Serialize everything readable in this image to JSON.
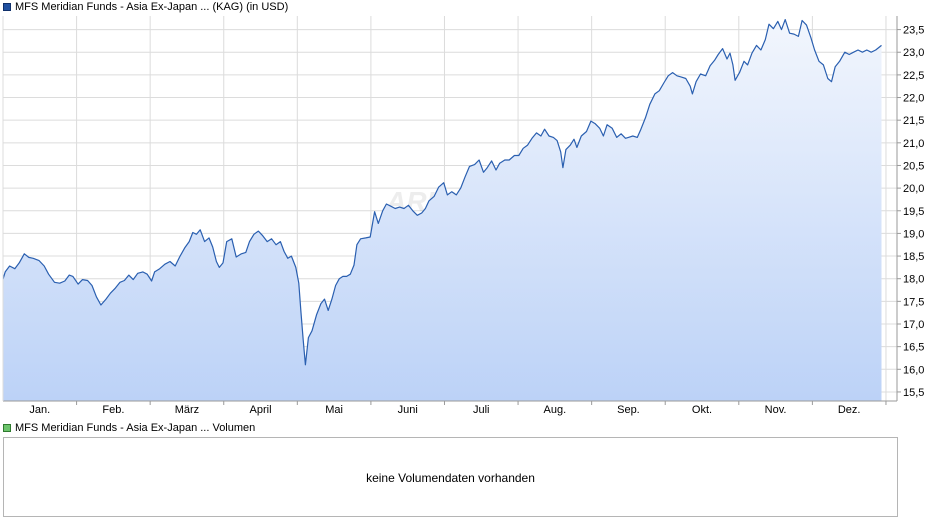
{
  "price_chart": {
    "legend_label": "MFS Meridian Funds - Asia Ex-Japan ... (KAG) (in USD)",
    "watermark": "ARIVA.DE"
  },
  "volume_chart": {
    "legend_label": "MFS Meridian Funds - Asia Ex-Japan ... Volumen",
    "empty_message": "keine Volumendaten vorhanden"
  },
  "colors": {
    "line": "#2a5fb0",
    "fill_top": "#f2f6fd",
    "fill_bottom": "#bcd2f7",
    "grid": "#dcdcdc",
    "axis": "#9a9a9a",
    "price_swatch": "#2050a0",
    "volume_swatch": "#6cc46c"
  },
  "chart_data": {
    "type": "area",
    "title": "MFS Meridian Funds - Asia Ex-Japan ... (KAG) (in USD)",
    "currency": "USD",
    "xlabel": "",
    "ylabel": "",
    "x_ticks": [
      "Jan.",
      "Feb.",
      "März",
      "April",
      "Mai",
      "Juni",
      "Juli",
      "Aug.",
      "Sep.",
      "Okt.",
      "Nov.",
      "Dez."
    ],
    "y_ticks": [
      "15,5",
      "16,0",
      "16,5",
      "17,0",
      "17,5",
      "18,0",
      "18,5",
      "19,0",
      "19,5",
      "20,0",
      "20,5",
      "21,0",
      "21,5",
      "22,0",
      "22,5",
      "23,0",
      "23,5"
    ],
    "y_tick_values": [
      15.5,
      16.0,
      16.5,
      17.0,
      17.5,
      18.0,
      18.5,
      19.0,
      19.5,
      20.0,
      20.5,
      21.0,
      21.5,
      22.0,
      22.5,
      23.0,
      23.5
    ],
    "ylim": [
      15.3,
      23.8
    ],
    "xlim": [
      0,
      12.15
    ],
    "grid": true,
    "x_unit": "months from start of year",
    "points": [
      [
        0.0,
        17.99
      ],
      [
        0.03,
        18.15
      ],
      [
        0.09,
        18.28
      ],
      [
        0.16,
        18.22
      ],
      [
        0.22,
        18.35
      ],
      [
        0.29,
        18.55
      ],
      [
        0.35,
        18.47
      ],
      [
        0.41,
        18.45
      ],
      [
        0.49,
        18.4
      ],
      [
        0.56,
        18.28
      ],
      [
        0.62,
        18.1
      ],
      [
        0.7,
        17.92
      ],
      [
        0.77,
        17.9
      ],
      [
        0.84,
        17.95
      ],
      [
        0.9,
        18.08
      ],
      [
        0.95,
        18.05
      ],
      [
        1.02,
        17.88
      ],
      [
        1.08,
        17.98
      ],
      [
        1.15,
        17.96
      ],
      [
        1.21,
        17.85
      ],
      [
        1.27,
        17.6
      ],
      [
        1.33,
        17.42
      ],
      [
        1.4,
        17.55
      ],
      [
        1.46,
        17.68
      ],
      [
        1.52,
        17.78
      ],
      [
        1.59,
        17.92
      ],
      [
        1.65,
        17.96
      ],
      [
        1.71,
        18.08
      ],
      [
        1.77,
        17.98
      ],
      [
        1.83,
        18.12
      ],
      [
        1.9,
        18.15
      ],
      [
        1.96,
        18.1
      ],
      [
        2.02,
        17.95
      ],
      [
        2.06,
        18.15
      ],
      [
        2.13,
        18.22
      ],
      [
        2.2,
        18.32
      ],
      [
        2.27,
        18.38
      ],
      [
        2.34,
        18.28
      ],
      [
        2.4,
        18.48
      ],
      [
        2.47,
        18.68
      ],
      [
        2.53,
        18.82
      ],
      [
        2.58,
        19.02
      ],
      [
        2.63,
        18.98
      ],
      [
        2.68,
        19.08
      ],
      [
        2.74,
        18.82
      ],
      [
        2.8,
        18.9
      ],
      [
        2.85,
        18.7
      ],
      [
        2.9,
        18.38
      ],
      [
        2.94,
        18.25
      ],
      [
        2.99,
        18.35
      ],
      [
        3.04,
        18.82
      ],
      [
        3.11,
        18.88
      ],
      [
        3.17,
        18.48
      ],
      [
        3.24,
        18.55
      ],
      [
        3.3,
        18.58
      ],
      [
        3.35,
        18.82
      ],
      [
        3.41,
        18.98
      ],
      [
        3.47,
        19.05
      ],
      [
        3.53,
        18.95
      ],
      [
        3.59,
        18.82
      ],
      [
        3.65,
        18.88
      ],
      [
        3.71,
        18.75
      ],
      [
        3.77,
        18.82
      ],
      [
        3.82,
        18.6
      ],
      [
        3.87,
        18.45
      ],
      [
        3.92,
        18.5
      ],
      [
        3.98,
        18.25
      ],
      [
        4.02,
        17.9
      ],
      [
        4.05,
        17.25
      ],
      [
        4.08,
        16.65
      ],
      [
        4.11,
        16.1
      ],
      [
        4.15,
        16.7
      ],
      [
        4.2,
        16.85
      ],
      [
        4.26,
        17.2
      ],
      [
        4.32,
        17.45
      ],
      [
        4.37,
        17.55
      ],
      [
        4.42,
        17.3
      ],
      [
        4.47,
        17.55
      ],
      [
        4.52,
        17.85
      ],
      [
        4.57,
        18.0
      ],
      [
        4.62,
        18.05
      ],
      [
        4.67,
        18.05
      ],
      [
        4.72,
        18.1
      ],
      [
        4.77,
        18.3
      ],
      [
        4.81,
        18.75
      ],
      [
        4.86,
        18.88
      ],
      [
        4.93,
        18.9
      ],
      [
        4.99,
        18.92
      ],
      [
        5.05,
        19.48
      ],
      [
        5.1,
        19.22
      ],
      [
        5.16,
        19.5
      ],
      [
        5.21,
        19.65
      ],
      [
        5.27,
        19.6
      ],
      [
        5.33,
        19.55
      ],
      [
        5.39,
        19.58
      ],
      [
        5.45,
        19.55
      ],
      [
        5.51,
        19.62
      ],
      [
        5.57,
        19.5
      ],
      [
        5.63,
        19.4
      ],
      [
        5.69,
        19.45
      ],
      [
        5.74,
        19.55
      ],
      [
        5.79,
        19.72
      ],
      [
        5.86,
        19.82
      ],
      [
        5.92,
        20.02
      ],
      [
        5.99,
        20.12
      ],
      [
        6.04,
        19.85
      ],
      [
        6.1,
        19.92
      ],
      [
        6.16,
        19.85
      ],
      [
        6.22,
        20.0
      ],
      [
        6.28,
        20.25
      ],
      [
        6.34,
        20.48
      ],
      [
        6.41,
        20.52
      ],
      [
        6.47,
        20.62
      ],
      [
        6.53,
        20.35
      ],
      [
        6.58,
        20.45
      ],
      [
        6.64,
        20.6
      ],
      [
        6.7,
        20.4
      ],
      [
        6.75,
        20.55
      ],
      [
        6.82,
        20.62
      ],
      [
        6.88,
        20.62
      ],
      [
        6.95,
        20.72
      ],
      [
        7.01,
        20.72
      ],
      [
        7.07,
        20.88
      ],
      [
        7.13,
        20.95
      ],
      [
        7.19,
        21.1
      ],
      [
        7.25,
        21.22
      ],
      [
        7.31,
        21.15
      ],
      [
        7.36,
        21.3
      ],
      [
        7.42,
        21.15
      ],
      [
        7.48,
        21.12
      ],
      [
        7.53,
        21.05
      ],
      [
        7.58,
        20.8
      ],
      [
        7.61,
        20.45
      ],
      [
        7.65,
        20.85
      ],
      [
        7.71,
        20.95
      ],
      [
        7.76,
        21.08
      ],
      [
        7.8,
        20.9
      ],
      [
        7.86,
        21.15
      ],
      [
        7.93,
        21.25
      ],
      [
        7.99,
        21.48
      ],
      [
        8.05,
        21.42
      ],
      [
        8.11,
        21.32
      ],
      [
        8.16,
        21.15
      ],
      [
        8.21,
        21.4
      ],
      [
        8.28,
        21.32
      ],
      [
        8.34,
        21.12
      ],
      [
        8.4,
        21.2
      ],
      [
        8.46,
        21.1
      ],
      [
        8.5,
        21.12
      ],
      [
        8.56,
        21.15
      ],
      [
        8.62,
        21.12
      ],
      [
        8.67,
        21.3
      ],
      [
        8.73,
        21.55
      ],
      [
        8.79,
        21.85
      ],
      [
        8.86,
        22.08
      ],
      [
        8.92,
        22.15
      ],
      [
        8.98,
        22.32
      ],
      [
        9.04,
        22.48
      ],
      [
        9.1,
        22.55
      ],
      [
        9.16,
        22.48
      ],
      [
        9.22,
        22.45
      ],
      [
        9.28,
        22.42
      ],
      [
        9.34,
        22.25
      ],
      [
        9.37,
        22.08
      ],
      [
        9.42,
        22.35
      ],
      [
        9.48,
        22.52
      ],
      [
        9.55,
        22.48
      ],
      [
        9.61,
        22.7
      ],
      [
        9.67,
        22.82
      ],
      [
        9.72,
        22.95
      ],
      [
        9.78,
        23.08
      ],
      [
        9.84,
        22.85
      ],
      [
        9.88,
        22.98
      ],
      [
        9.92,
        22.72
      ],
      [
        9.95,
        22.38
      ],
      [
        10.01,
        22.55
      ],
      [
        10.07,
        22.8
      ],
      [
        10.12,
        22.72
      ],
      [
        10.18,
        22.98
      ],
      [
        10.24,
        23.15
      ],
      [
        10.3,
        23.05
      ],
      [
        10.36,
        23.28
      ],
      [
        10.41,
        23.62
      ],
      [
        10.47,
        23.52
      ],
      [
        10.53,
        23.68
      ],
      [
        10.58,
        23.5
      ],
      [
        10.63,
        23.72
      ],
      [
        10.69,
        23.42
      ],
      [
        10.75,
        23.4
      ],
      [
        10.81,
        23.35
      ],
      [
        10.86,
        23.7
      ],
      [
        10.92,
        23.6
      ],
      [
        10.98,
        23.32
      ],
      [
        11.03,
        23.05
      ],
      [
        11.09,
        22.8
      ],
      [
        11.15,
        22.72
      ],
      [
        11.21,
        22.42
      ],
      [
        11.26,
        22.35
      ],
      [
        11.31,
        22.68
      ],
      [
        11.37,
        22.8
      ],
      [
        11.44,
        23.0
      ],
      [
        11.5,
        22.95
      ],
      [
        11.56,
        23.0
      ],
      [
        11.62,
        23.05
      ],
      [
        11.68,
        23.0
      ],
      [
        11.74,
        23.05
      ],
      [
        11.8,
        23.0
      ],
      [
        11.86,
        23.05
      ],
      [
        11.94,
        23.15
      ]
    ]
  }
}
